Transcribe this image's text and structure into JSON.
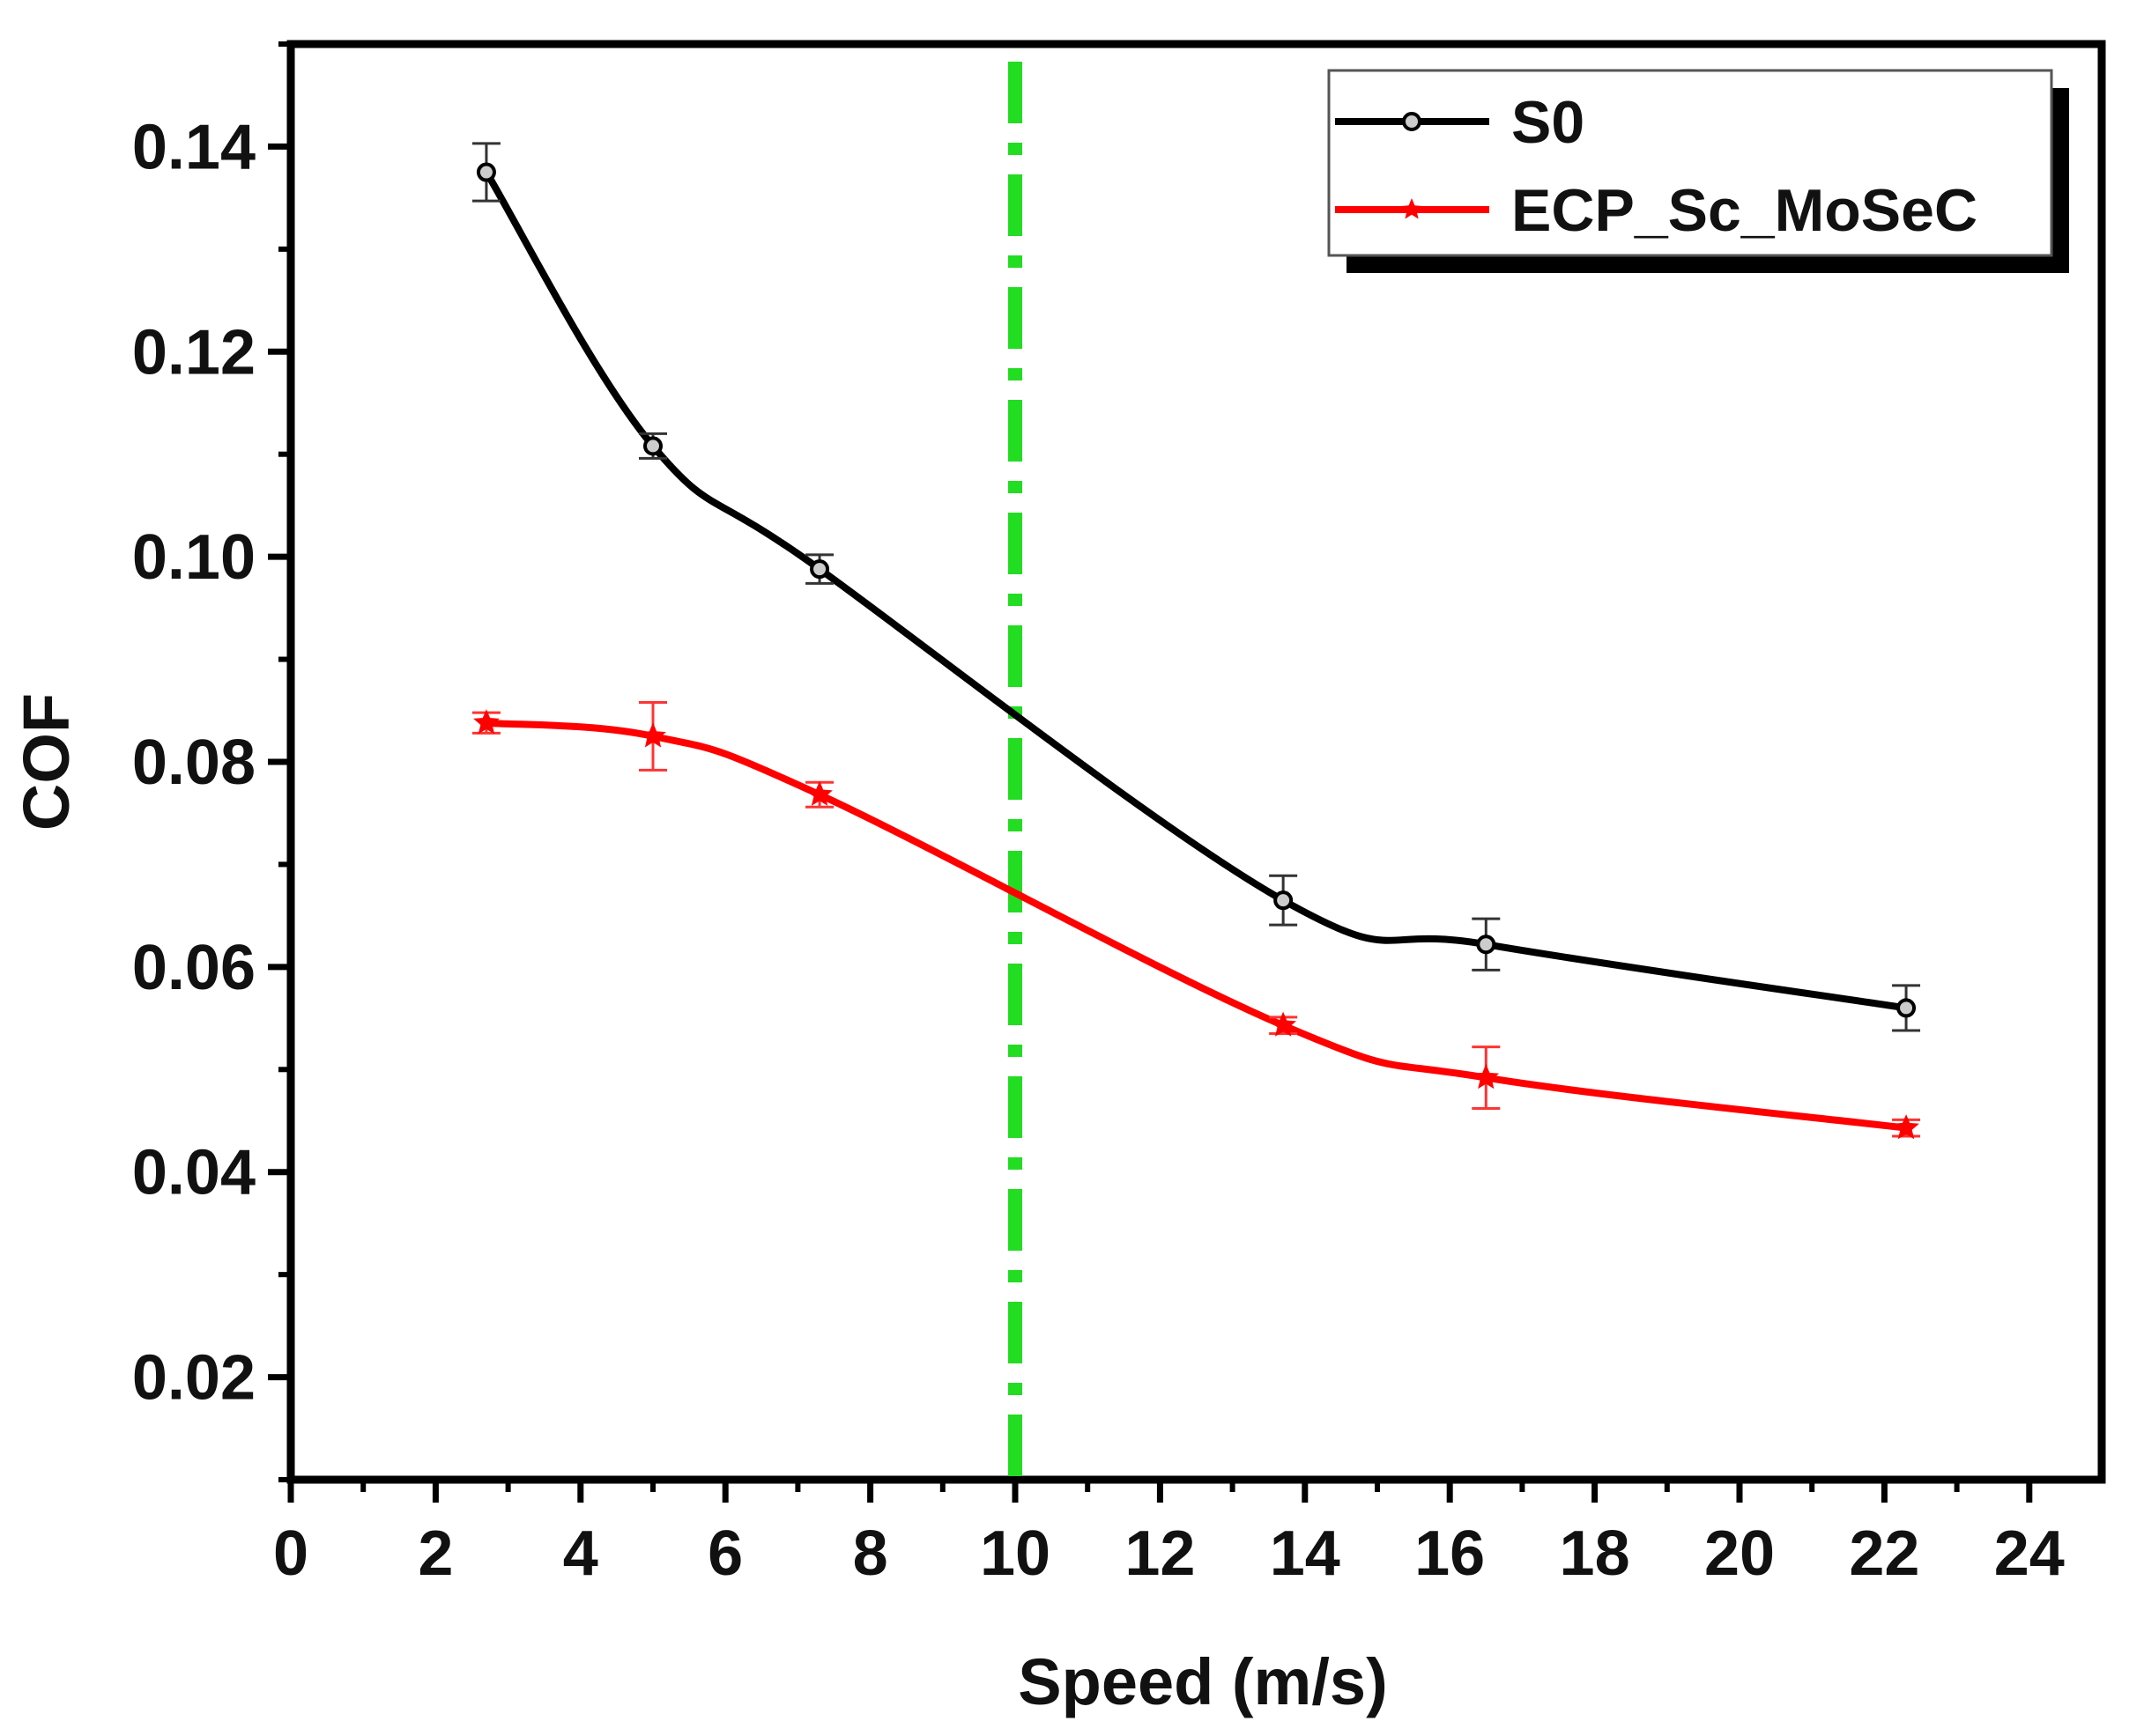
{
  "chart_data": {
    "type": "line",
    "title": "",
    "xlabel": "Speed (m/s)",
    "ylabel": "COF",
    "xlim": [
      0,
      25
    ],
    "ylim": [
      0.01,
      0.15
    ],
    "xticks": [
      0,
      2,
      4,
      6,
      8,
      10,
      12,
      14,
      16,
      18,
      20,
      22,
      24
    ],
    "xtick_labels": [
      "0",
      "2",
      "4",
      "6",
      "8",
      "10",
      "12",
      "14",
      "16",
      "18",
      "20",
      "22",
      "24"
    ],
    "yticks": [
      0.02,
      0.04,
      0.06,
      0.08,
      0.1,
      0.12,
      0.14
    ],
    "ytick_labels": [
      "0.02",
      "0.04",
      "0.06",
      "0.08",
      "0.10",
      "0.12",
      "0.14"
    ],
    "grid": false,
    "legend_position": "top-right",
    "reference_line": {
      "x": 10,
      "color": "#22dd22",
      "style": "dash-dot"
    },
    "series": [
      {
        "name": "S0",
        "color": "#000000",
        "marker": "open-circle",
        "x": [
          2.7,
          5.0,
          7.3,
          13.7,
          16.5,
          22.3
        ],
        "y": [
          0.1375,
          0.1108,
          0.0988,
          0.0665,
          0.0622,
          0.056
        ],
        "err": [
          0.0028,
          0.0012,
          0.0014,
          0.0024,
          0.0025,
          0.0022
        ]
      },
      {
        "name": "ECP_Sc_MoSeC",
        "color": "#ff0000",
        "marker": "star",
        "x": [
          2.7,
          5.0,
          7.3,
          13.7,
          16.5,
          22.3
        ],
        "y": [
          0.0838,
          0.0825,
          0.0768,
          0.0543,
          0.0492,
          0.0443
        ],
        "err": [
          0.001,
          0.0033,
          0.0012,
          0.0008,
          0.003,
          0.0008
        ]
      }
    ]
  }
}
